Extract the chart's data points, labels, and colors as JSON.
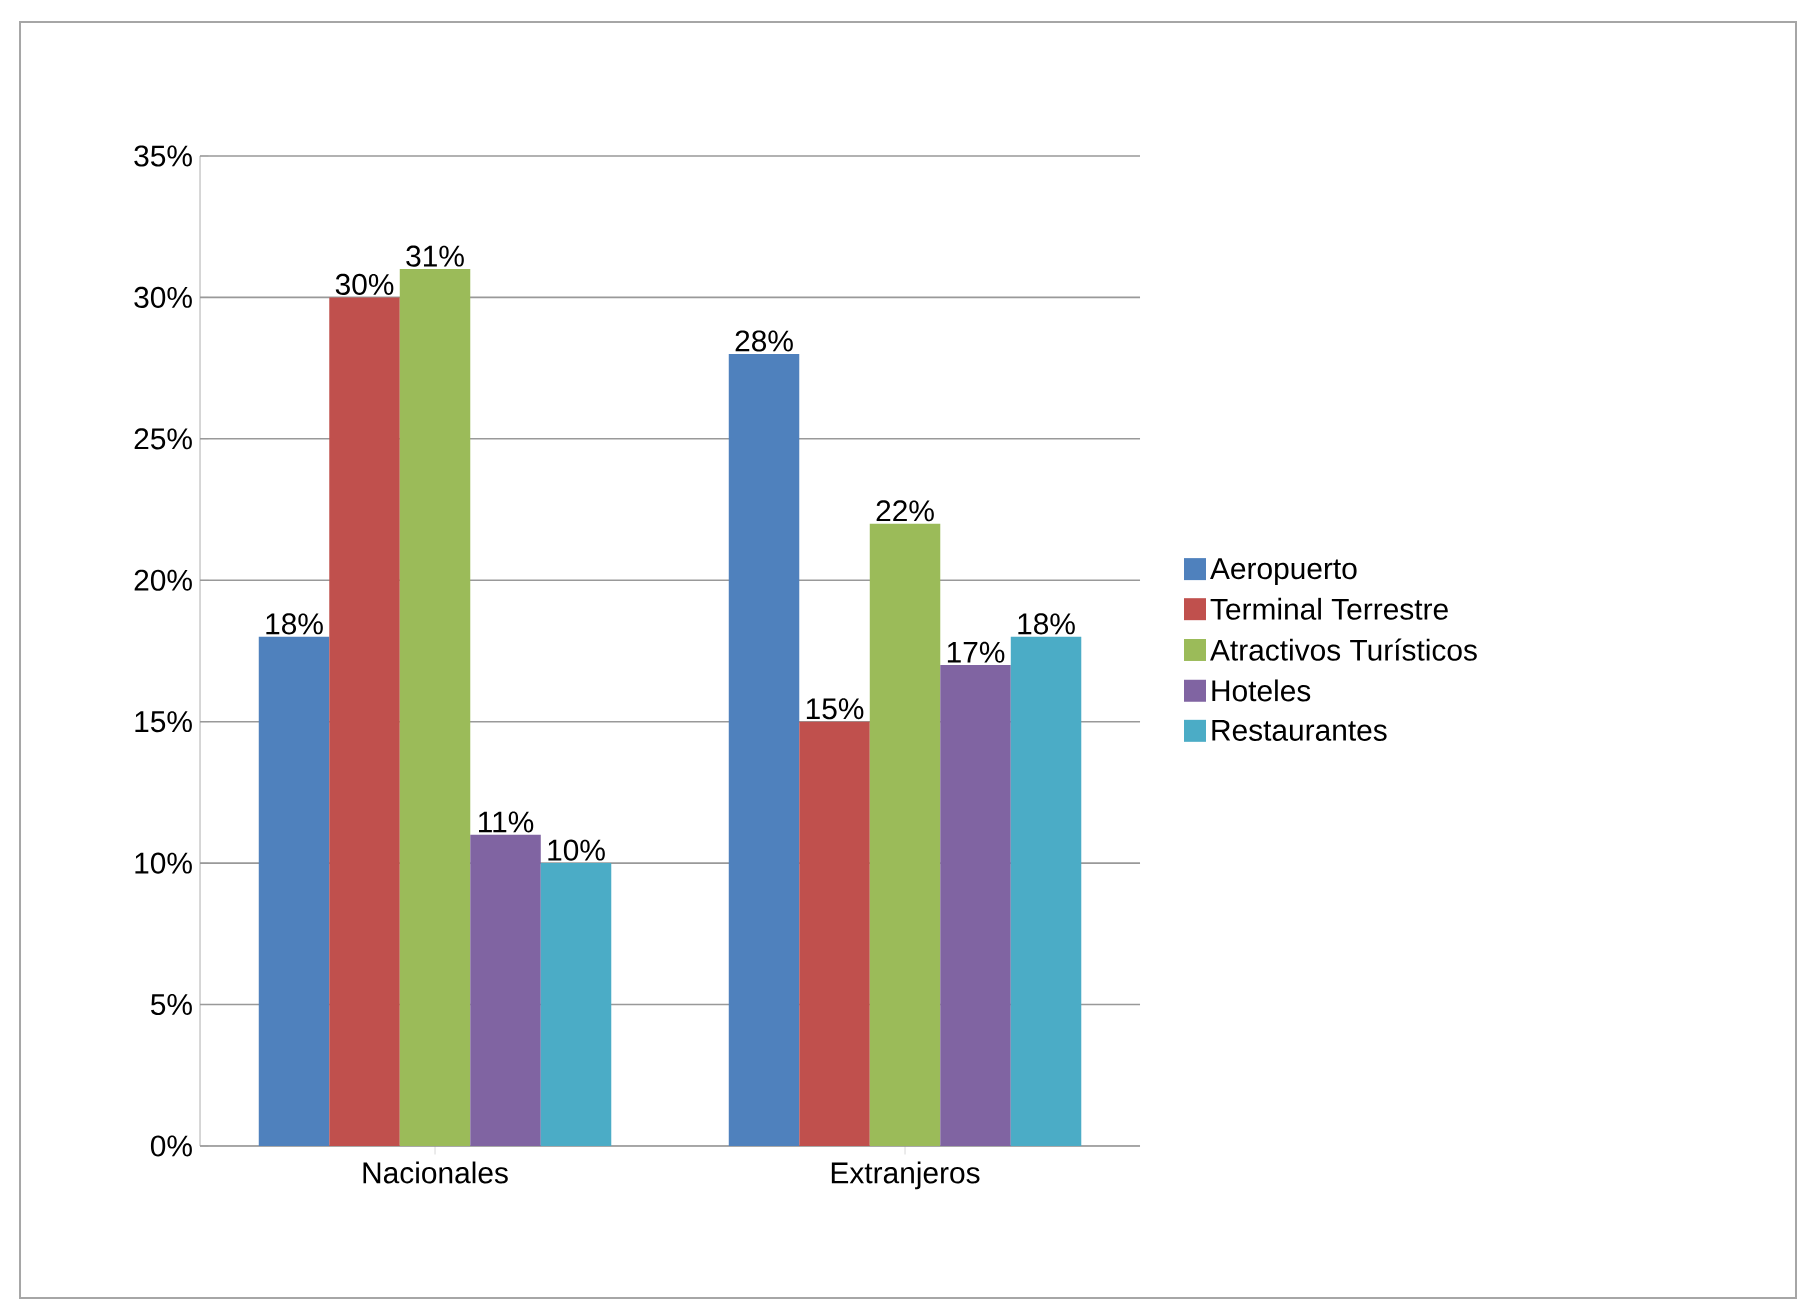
{
  "chart_data": {
    "type": "bar",
    "categories": [
      "Nacionales",
      "Extranjeros"
    ],
    "series": [
      {
        "name": "Aeropuerto",
        "color": "#4f81bd",
        "values": [
          18,
          28
        ],
        "value_labels": [
          "18%",
          "28%"
        ]
      },
      {
        "name": "Terminal Terrestre",
        "color": "#c0504d",
        "values": [
          30,
          15
        ],
        "value_labels": [
          "30%",
          "15%"
        ]
      },
      {
        "name": "Atractivos Turísticos",
        "color": "#9bbb59",
        "values": [
          31,
          22
        ],
        "value_labels": [
          "31%",
          "22%"
        ]
      },
      {
        "name": "Hoteles",
        "color": "#8064a2",
        "values": [
          11,
          17
        ],
        "value_labels": [
          "11%",
          "17%"
        ]
      },
      {
        "name": "Restaurantes",
        "color": "#4bacc6",
        "values": [
          10,
          18
        ],
        "value_labels": [
          "10%",
          "18%"
        ]
      }
    ],
    "ylim": [
      0,
      35
    ],
    "yticks": [
      {
        "value": 0,
        "label": "0%"
      },
      {
        "value": 5,
        "label": "5%"
      },
      {
        "value": 10,
        "label": "10%"
      },
      {
        "value": 15,
        "label": "15%"
      },
      {
        "value": 20,
        "label": "20%"
      },
      {
        "value": 25,
        "label": "25%"
      },
      {
        "value": 30,
        "label": "30%"
      },
      {
        "value": 35,
        "label": "35%"
      }
    ],
    "grid": "y",
    "legend": "right"
  }
}
